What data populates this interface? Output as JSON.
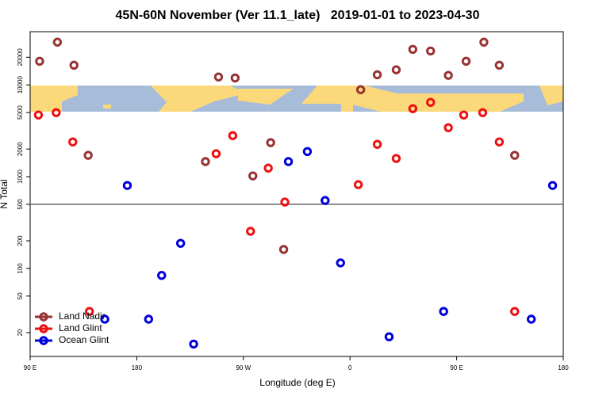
{
  "chart_data": {
    "type": "scatter",
    "title": "45N-60N November (Ver 11.1_late)   2019-01-01 to 2023-04-30",
    "xlabel": "Longitude (deg E)",
    "ylabel": "N Total",
    "xlim": [
      90,
      540
    ],
    "ylim": [
      11,
      38000
    ],
    "log_y": true,
    "xticks": [
      {
        "value": 90,
        "label": "90 E"
      },
      180,
      {
        "value": 270,
        "label": "90 W"
      },
      {
        "value": 360,
        "label": "0"
      },
      {
        "value": 450,
        "label": "90 E"
      },
      {
        "value": 540,
        "label": "180"
      }
    ],
    "yticks": [
      20,
      50,
      100,
      200,
      500,
      1000,
      2000,
      5000,
      10000,
      20000
    ],
    "hline": 500,
    "legend": "bottom-left",
    "series": [
      {
        "name": "Land Nadir",
        "color": "#993333",
        "x": [
          98,
          113,
          127,
          139,
          238,
          249,
          263,
          278,
          293,
          304,
          369,
          383,
          399,
          413,
          428,
          443,
          458,
          473,
          486,
          499
        ],
        "values": [
          18100,
          29200,
          16400,
          1710,
          1460,
          12200,
          11900,
          1020,
          2350,
          161,
          8870,
          12900,
          14600,
          24400,
          23400,
          12700,
          18100,
          29200,
          16400,
          1710
        ]
      },
      {
        "name": "Land Glint",
        "color": "#ee1111",
        "x": [
          97,
          112,
          126,
          140,
          247,
          261,
          276,
          291,
          305,
          367,
          383,
          399,
          413,
          428,
          443,
          456,
          472,
          486,
          499
        ],
        "values": [
          4700,
          4990,
          2390,
          34,
          1780,
          2800,
          254,
          1240,
          529,
          819,
          2250,
          1580,
          5510,
          6450,
          3420,
          4700,
          4990,
          2390,
          34
        ]
      },
      {
        "name": "Ocean Glint",
        "color": "#0000dd",
        "x": [
          153,
          172,
          190,
          201,
          217,
          228,
          308,
          324,
          339,
          352,
          393,
          439,
          513,
          531
        ],
        "values": [
          28,
          802,
          28,
          84,
          188,
          15,
          1460,
          1880,
          550,
          115,
          18,
          34,
          28,
          802
        ]
      }
    ]
  }
}
